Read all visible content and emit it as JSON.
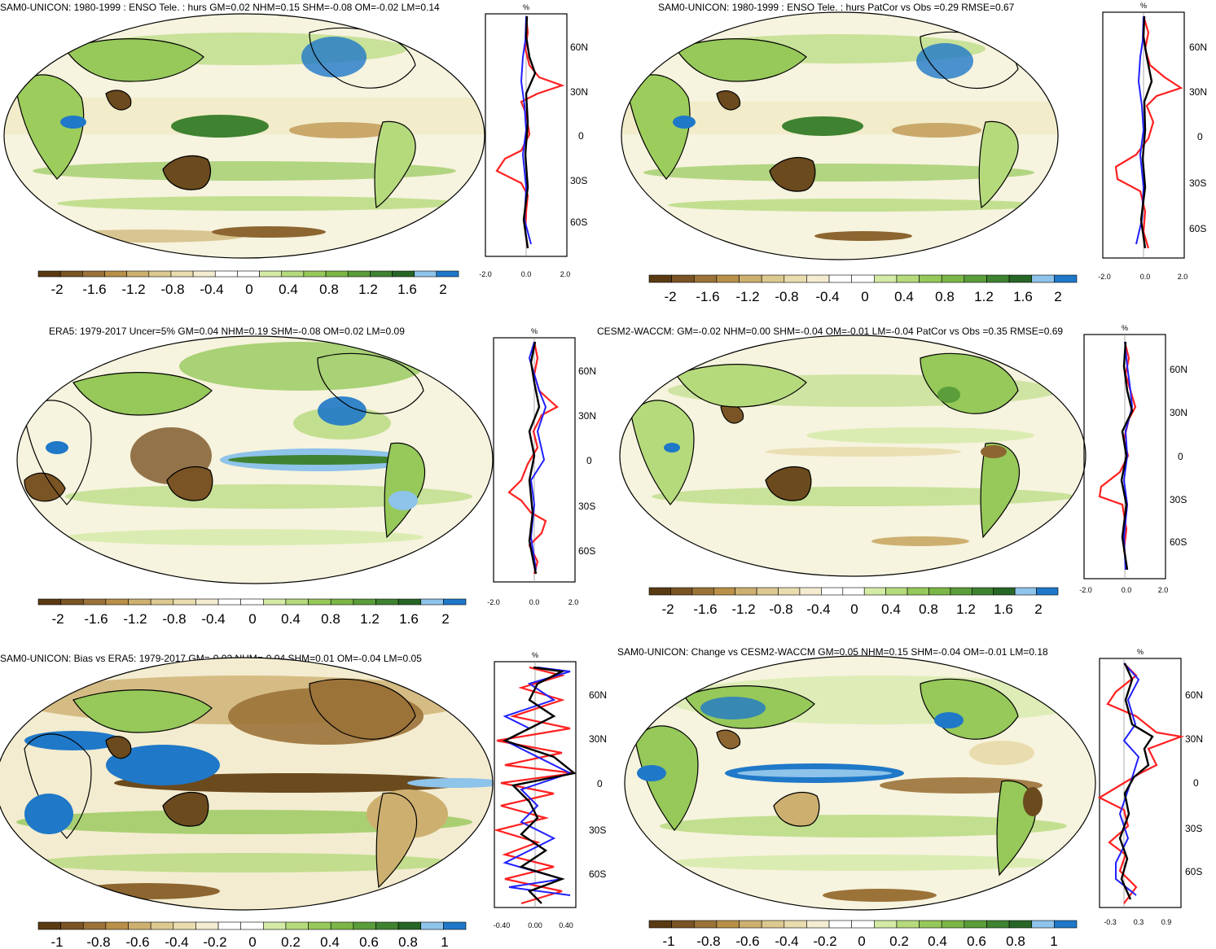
{
  "colors": {
    "brown_dark": "#6b4a1e",
    "brown": "#8c6530",
    "tan": "#c9a86a",
    "beige": "#ecdca8",
    "cream": "#f7f0cf",
    "white": "#ffffff",
    "green_light": "#cfe6a4",
    "green": "#9ccc5c",
    "green_mid": "#6fb23e",
    "green_dark": "#2e7d32",
    "blue_light": "#8ec3ea",
    "blue": "#1e78c8",
    "ocean_bg": "#f4f4e8",
    "red": "#ff2020",
    "profile_blue": "#2020ff",
    "black": "#000000"
  },
  "colorbar_colors": [
    "#5a3a12",
    "#7a5424",
    "#9b7238",
    "#b89048",
    "#cdb070",
    "#dcc990",
    "#e9dcae",
    "#f3ecd0",
    "#ffffff",
    "#ffffff",
    "#d4eaa6",
    "#b5da7c",
    "#96c85a",
    "#7bb646",
    "#5a9d3a",
    "#3f8231",
    "#276626",
    "#8ec3ea",
    "#1f78c8"
  ],
  "panels": [
    {
      "id": "p1",
      "title": "SAM0-UNICON: 1980-1999 : ENSO Tele. : hurs GM=0.02 NHM=0.15 SHM=-0.08 OM=-0.02 LM=0.14",
      "colorbar_labels": [
        "-2",
        "-1.6",
        "-1.2",
        "-0.8",
        "-0.4",
        "0",
        "0.4",
        "0.8",
        "1.2",
        "1.6",
        "2"
      ],
      "profile_unit": "%",
      "profile_xticks": [
        "-2.0",
        "0.0",
        "2.0"
      ],
      "lat_labels": [
        "60N",
        "30N",
        "0",
        "30S",
        "60S"
      ]
    },
    {
      "id": "p2",
      "title": "SAM0-UNICON: 1980-1999 : ENSO Tele. : hurs PatCor vs Obs =0.29 RMSE=0.67",
      "colorbar_labels": [
        "-2",
        "-1.6",
        "-1.2",
        "-0.8",
        "-0.4",
        "0",
        "0.4",
        "0.8",
        "1.2",
        "1.6",
        "2"
      ],
      "profile_unit": "%",
      "profile_xticks": [
        "-2.0",
        "0.0",
        "2.0"
      ],
      "lat_labels": [
        "60N",
        "30N",
        "0",
        "30S",
        "60S"
      ]
    },
    {
      "id": "p3",
      "title": "ERA5: 1979-2017 Uncer=5% GM=0.04 NHM=0.19 SHM=-0.08 OM=0.02 LM=0.09",
      "colorbar_labels": [
        "-2",
        "-1.6",
        "-1.2",
        "-0.8",
        "-0.4",
        "0",
        "0.4",
        "0.8",
        "1.2",
        "1.6",
        "2"
      ],
      "profile_unit": "%",
      "profile_xticks": [
        "-2.0",
        "0.0",
        "2.0"
      ],
      "lat_labels": [
        "60N",
        "30N",
        "0",
        "30S",
        "60S"
      ]
    },
    {
      "id": "p4",
      "title": "CESM2-WACCM: GM=-0.02 NHM=0.00 SHM=-0.04 OM=-0.01 LM=-0.04 PatCor vs Obs =0.35 RMSE=0.69",
      "colorbar_labels": [
        "-2",
        "-1.6",
        "-1.2",
        "-0.8",
        "-0.4",
        "0",
        "0.4",
        "0.8",
        "1.2",
        "1.6",
        "2"
      ],
      "profile_unit": "%",
      "profile_xticks": [
        "-2.0",
        "0.0",
        "2.0"
      ],
      "lat_labels": [
        "60N",
        "30N",
        "0",
        "30S",
        "60S"
      ]
    },
    {
      "id": "p5",
      "title": "SAM0-UNICON: Bias vs ERA5: 1979-2017 GM=-0.02 NHM=-0.04 SHM=0.01 OM=-0.04 LM=0.05",
      "colorbar_labels": [
        "-1",
        "-0.8",
        "-0.6",
        "-0.4",
        "-0.2",
        "0",
        "0.2",
        "0.4",
        "0.6",
        "0.8",
        "1"
      ],
      "profile_unit": "%",
      "profile_xticks": [
        "-0.40",
        "0.00",
        "0.40"
      ],
      "lat_labels": [
        "60N",
        "30N",
        "0",
        "30S",
        "60S"
      ]
    },
    {
      "id": "p6",
      "title": "SAM0-UNICON: Change vs CESM2-WACCM GM=0.05 NHM=0.15 SHM=-0.04 OM=-0.01 LM=0.18",
      "colorbar_labels": [
        "-1",
        "-0.8",
        "-0.6",
        "-0.4",
        "-0.2",
        "0",
        "0.2",
        "0.4",
        "0.6",
        "0.8",
        "1"
      ],
      "profile_unit": "%",
      "profile_xticks": [
        "-0.3",
        "0.3",
        "0.9"
      ],
      "lat_labels": [
        "60N",
        "30N",
        "0",
        "30S",
        "60S"
      ]
    }
  ]
}
